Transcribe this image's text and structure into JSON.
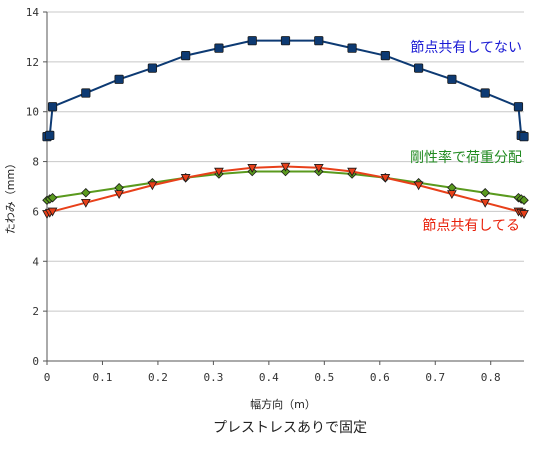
{
  "chart_data": {
    "type": "line",
    "title": "",
    "caption": "プレストレスありで固定",
    "xlabel": "幅方向（m）",
    "ylabel": "たわみ（mm）",
    "xlim": [
      0,
      0.86
    ],
    "ylim": [
      0,
      14
    ],
    "x_ticks": [
      "0",
      "0.1",
      "0.2",
      "0.3",
      "0.4",
      "0.5",
      "0.6",
      "0.7",
      "0.8"
    ],
    "x_tick_values": [
      0,
      0.1,
      0.2,
      0.3,
      0.4,
      0.5,
      0.6,
      0.7,
      0.8
    ],
    "y_ticks": [
      "0",
      "2",
      "4",
      "6",
      "8",
      "10",
      "12",
      "14"
    ],
    "y_tick_values": [
      0,
      2,
      4,
      6,
      8,
      10,
      12,
      14
    ],
    "grid": "horizontal",
    "series": [
      {
        "name": "節点共有してない",
        "color": "#0d3a73",
        "label_color": "#1a1ad4",
        "marker": "square",
        "x": [
          0,
          0.005,
          0.01,
          0.07,
          0.13,
          0.19,
          0.25,
          0.31,
          0.37,
          0.43,
          0.49,
          0.55,
          0.61,
          0.67,
          0.73,
          0.79,
          0.85,
          0.855,
          0.86
        ],
        "values": [
          9.0,
          9.05,
          10.2,
          10.75,
          11.3,
          11.75,
          12.25,
          12.55,
          12.85,
          12.85,
          12.85,
          12.55,
          12.25,
          11.75,
          11.3,
          10.75,
          10.2,
          9.05,
          9.0
        ]
      },
      {
        "name": "剛性率で荷重分配",
        "color": "#5a9a1e",
        "label_color": "#228b22",
        "marker": "diamond",
        "x": [
          0,
          0.005,
          0.01,
          0.07,
          0.13,
          0.19,
          0.25,
          0.31,
          0.37,
          0.43,
          0.49,
          0.55,
          0.61,
          0.67,
          0.73,
          0.79,
          0.85,
          0.855,
          0.86
        ],
        "values": [
          6.45,
          6.5,
          6.55,
          6.75,
          6.95,
          7.15,
          7.35,
          7.5,
          7.6,
          7.6,
          7.6,
          7.5,
          7.35,
          7.15,
          6.95,
          6.75,
          6.55,
          6.5,
          6.45
        ]
      },
      {
        "name": "節点共有してる",
        "color": "#e8401a",
        "label_color": "#e8200a",
        "marker": "triangle-down",
        "x": [
          0,
          0.005,
          0.01,
          0.07,
          0.13,
          0.19,
          0.25,
          0.31,
          0.37,
          0.43,
          0.49,
          0.55,
          0.61,
          0.67,
          0.73,
          0.79,
          0.85,
          0.855,
          0.86
        ],
        "values": [
          5.9,
          5.95,
          6.0,
          6.35,
          6.7,
          7.05,
          7.35,
          7.6,
          7.75,
          7.8,
          7.75,
          7.6,
          7.35,
          7.05,
          6.7,
          6.35,
          6.0,
          5.95,
          5.9
        ]
      }
    ]
  }
}
